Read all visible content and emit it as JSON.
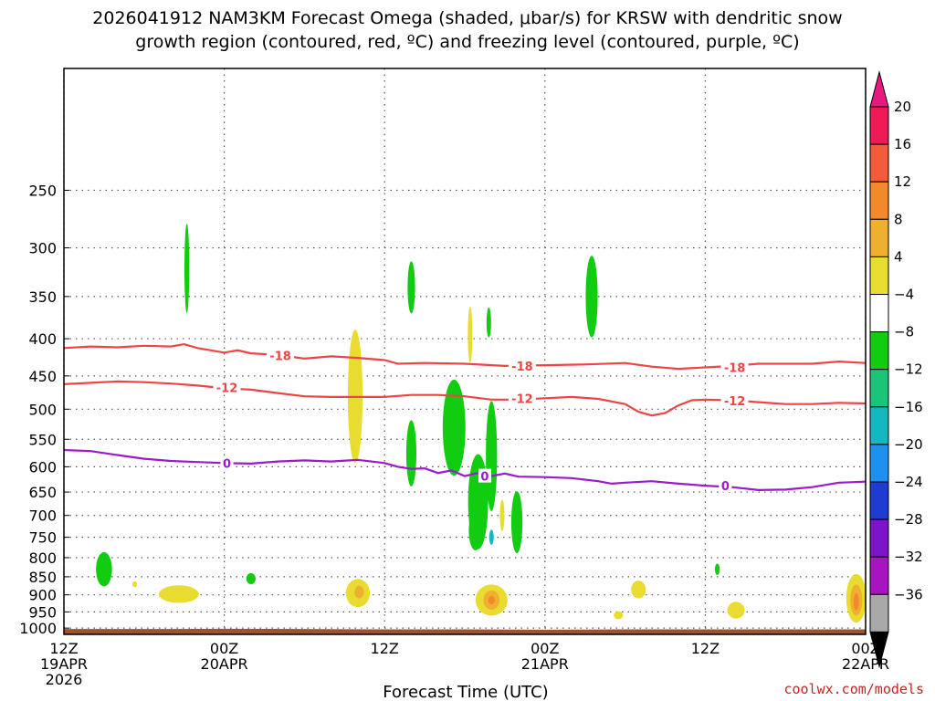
{
  "title_line1": "2026041912 NAM3KM Forecast Omega (shaded, μbar/s) for KRSW with dendritic snow",
  "title_line2": "growth region (contoured, red, ºC) and freezing level (contoured, purple, ºC)",
  "credit": "coolwx.com/models",
  "chart_data": {
    "type": "heatmap",
    "xlabel": "Forecast Time (UTC)",
    "ylabel": "",
    "x_range_hours": [
      0,
      60
    ],
    "y_range_hPa": [
      1020,
      170
    ],
    "y_scale": "log",
    "grid": "dotted",
    "y_ticks": [
      250,
      300,
      350,
      400,
      450,
      500,
      550,
      600,
      650,
      700,
      750,
      800,
      850,
      900,
      950,
      1000
    ],
    "x_ticks": [
      {
        "hour": 0,
        "lines": [
          "12Z",
          "19APR",
          "2026"
        ]
      },
      {
        "hour": 12,
        "lines": [
          "00Z",
          "20APR"
        ]
      },
      {
        "hour": 24,
        "lines": [
          "12Z"
        ]
      },
      {
        "hour": 36,
        "lines": [
          "00Z",
          "21APR"
        ]
      },
      {
        "hour": 48,
        "lines": [
          "12Z"
        ]
      },
      {
        "hour": 60,
        "lines": [
          "00Z",
          "22APR"
        ]
      }
    ],
    "colorbar": {
      "levels": [
        20,
        16,
        12,
        8,
        4,
        -4,
        -8,
        -12,
        -16,
        -20,
        -24,
        -28,
        -32,
        -36
      ],
      "colors": [
        "#ee1a55",
        "#f35b3b",
        "#f2892a",
        "#eeb02e",
        "#e9dc30",
        "#ffffff",
        "#12cc12",
        "#1cc47a",
        "#14b8c0",
        "#1e90ee",
        "#1e3cd0",
        "#7d14c8",
        "#a814c0",
        "#a9a9a9"
      ],
      "top_cap_color": "#e8197e",
      "bottom_cap_color": "#000000"
    },
    "series": [
      {
        "name": "-18",
        "color": "#ee4444",
        "points": [
          [
            0,
            412
          ],
          [
            2,
            410
          ],
          [
            4,
            411
          ],
          [
            6,
            409
          ],
          [
            8,
            410
          ],
          [
            9,
            407
          ],
          [
            10,
            412
          ],
          [
            12,
            418
          ],
          [
            13,
            415
          ],
          [
            14,
            419
          ],
          [
            16,
            421
          ],
          [
            18,
            426
          ],
          [
            20,
            423
          ],
          [
            22,
            425
          ],
          [
            24,
            428
          ],
          [
            25,
            433
          ],
          [
            27,
            432
          ],
          [
            30,
            433
          ],
          [
            33,
            436
          ],
          [
            36,
            435
          ],
          [
            39,
            434
          ],
          [
            42,
            432
          ],
          [
            44,
            437
          ],
          [
            46,
            440
          ],
          [
            48,
            438
          ],
          [
            50,
            436
          ],
          [
            52,
            433
          ],
          [
            54,
            433
          ],
          [
            56,
            433
          ],
          [
            58,
            430
          ],
          [
            60,
            432
          ]
        ],
        "labels": [
          [
            16.2,
            422
          ],
          [
            34.3,
            436
          ],
          [
            50.2,
            438
          ]
        ]
      },
      {
        "name": "-12",
        "color": "#ee4444",
        "points": [
          [
            0,
            462
          ],
          [
            2,
            460
          ],
          [
            4,
            458
          ],
          [
            6,
            459
          ],
          [
            8,
            461
          ],
          [
            10,
            464
          ],
          [
            12,
            468
          ],
          [
            14,
            470
          ],
          [
            16,
            475
          ],
          [
            18,
            480
          ],
          [
            20,
            481
          ],
          [
            22,
            481
          ],
          [
            24,
            481
          ],
          [
            26,
            478
          ],
          [
            28,
            478
          ],
          [
            30,
            480
          ],
          [
            32,
            485
          ],
          [
            34,
            485
          ],
          [
            36,
            483
          ],
          [
            38,
            481
          ],
          [
            40,
            484
          ],
          [
            42,
            492
          ],
          [
            43,
            504
          ],
          [
            44,
            510
          ],
          [
            45,
            506
          ],
          [
            46,
            494
          ],
          [
            47,
            486
          ],
          [
            48,
            485
          ],
          [
            50,
            486
          ],
          [
            52,
            489
          ],
          [
            54,
            492
          ],
          [
            56,
            492
          ],
          [
            58,
            490
          ],
          [
            60,
            491
          ]
        ],
        "labels": [
          [
            12.2,
            467
          ],
          [
            34.3,
            483
          ],
          [
            50.2,
            487
          ]
        ]
      },
      {
        "name": "0",
        "color": "#9a1acc",
        "points": [
          [
            0,
            569
          ],
          [
            2,
            571
          ],
          [
            4,
            578
          ],
          [
            6,
            585
          ],
          [
            8,
            589
          ],
          [
            10,
            591
          ],
          [
            12,
            593
          ],
          [
            14,
            594
          ],
          [
            16,
            590
          ],
          [
            18,
            588
          ],
          [
            20,
            590
          ],
          [
            22,
            587
          ],
          [
            24,
            593
          ],
          [
            25,
            600
          ],
          [
            26,
            604
          ],
          [
            27,
            603
          ],
          [
            28,
            612
          ],
          [
            29,
            607
          ],
          [
            30,
            618
          ],
          [
            31,
            612
          ],
          [
            32,
            618
          ],
          [
            33,
            613
          ],
          [
            34,
            619
          ],
          [
            36,
            620
          ],
          [
            38,
            622
          ],
          [
            40,
            628
          ],
          [
            41,
            633
          ],
          [
            42,
            631
          ],
          [
            44,
            628
          ],
          [
            46,
            633
          ],
          [
            48,
            637
          ],
          [
            50,
            640
          ],
          [
            52,
            646
          ],
          [
            54,
            645
          ],
          [
            56,
            640
          ],
          [
            58,
            631
          ],
          [
            60,
            629
          ]
        ],
        "labels": [
          [
            12.2,
            593
          ],
          [
            31.5,
            618
          ],
          [
            49.5,
            637
          ]
        ]
      }
    ],
    "blobs": [
      {
        "t": 9.2,
        "p": 320,
        "dt": 0.18,
        "dp": 45,
        "color": "#12cc12"
      },
      {
        "t": 26.0,
        "p": 340,
        "dt": 0.28,
        "dp": 28,
        "color": "#12cc12"
      },
      {
        "t": 31.8,
        "p": 380,
        "dt": 0.12,
        "dp": 18,
        "color": "#12cc12"
      },
      {
        "t": 30.4,
        "p": 395,
        "dt": 0.08,
        "dp": 35,
        "color": "#e9dc30"
      },
      {
        "t": 39.5,
        "p": 350,
        "dt": 0.45,
        "dp": 45,
        "color": "#12cc12"
      },
      {
        "t": 21.8,
        "p": 480,
        "dt": 0.55,
        "dp": 100,
        "color": "#e9dc30"
      },
      {
        "t": 26.0,
        "p": 575,
        "dt": 0.38,
        "dp": 60,
        "color": "#12cc12"
      },
      {
        "t": 29.2,
        "p": 530,
        "dt": 0.85,
        "dp": 80,
        "color": "#12cc12"
      },
      {
        "t": 31.0,
        "p": 670,
        "dt": 0.75,
        "dp": 100,
        "color": "#12cc12"
      },
      {
        "t": 32.0,
        "p": 580,
        "dt": 0.42,
        "dp": 100,
        "color": "#12cc12"
      },
      {
        "t": 30.8,
        "p": 735,
        "dt": 0.5,
        "dp": 45,
        "color": "#12cc12"
      },
      {
        "t": 33.9,
        "p": 715,
        "dt": 0.42,
        "dp": 70,
        "color": "#12cc12"
      },
      {
        "t": 32.8,
        "p": 700,
        "dt": 0.15,
        "dp": 35,
        "color": "#e9dc30"
      },
      {
        "t": 32.0,
        "p": 750,
        "dt": 0.1,
        "dp": 18,
        "color": "#14b8c0"
      },
      {
        "t": 3.0,
        "p": 830,
        "dt": 0.6,
        "dp": 45,
        "color": "#12cc12"
      },
      {
        "t": 5.3,
        "p": 870,
        "dt": 0.12,
        "dp": 8,
        "color": "#e9dc30"
      },
      {
        "t": 8.6,
        "p": 898,
        "dt": 1.5,
        "dp": 25,
        "color": "#e9dc30"
      },
      {
        "t": 14.0,
        "p": 855,
        "dt": 0.35,
        "dp": 15,
        "color": "#12cc12"
      },
      {
        "t": 22.0,
        "p": 895,
        "dt": 0.9,
        "dp": 40,
        "color": "#e9dc30"
      },
      {
        "t": 22.1,
        "p": 892,
        "dt": 0.35,
        "dp": 18,
        "color": "#eeb02e"
      },
      {
        "t": 32.0,
        "p": 915,
        "dt": 1.2,
        "dp": 45,
        "color": "#e9dc30"
      },
      {
        "t": 32.0,
        "p": 915,
        "dt": 0.6,
        "dp": 28,
        "color": "#eeb02e"
      },
      {
        "t": 32.0,
        "p": 915,
        "dt": 0.25,
        "dp": 12,
        "color": "#f2892a"
      },
      {
        "t": 41.5,
        "p": 960,
        "dt": 0.35,
        "dp": 12,
        "color": "#e9dc30"
      },
      {
        "t": 43.0,
        "p": 885,
        "dt": 0.55,
        "dp": 25,
        "color": "#e9dc30"
      },
      {
        "t": 48.9,
        "p": 830,
        "dt": 0.18,
        "dp": 15,
        "color": "#12cc12"
      },
      {
        "t": 50.3,
        "p": 945,
        "dt": 0.65,
        "dp": 25,
        "color": "#e9dc30"
      },
      {
        "t": 59.3,
        "p": 910,
        "dt": 0.75,
        "dp": 70,
        "color": "#e9dc30"
      },
      {
        "t": 59.3,
        "p": 915,
        "dt": 0.45,
        "dp": 45,
        "color": "#eeb02e"
      },
      {
        "t": 59.3,
        "p": 920,
        "dt": 0.2,
        "dp": 25,
        "color": "#f2892a"
      }
    ],
    "terrain": {
      "color": "#a0522d",
      "points": [
        [
          0,
          1003
        ],
        [
          8,
          1003
        ],
        [
          12,
          1002
        ],
        [
          18,
          1003
        ],
        [
          24,
          1004
        ],
        [
          30,
          1004
        ],
        [
          36,
          1005
        ],
        [
          42,
          1004
        ],
        [
          48,
          1004
        ],
        [
          54,
          1004
        ],
        [
          60,
          1004
        ]
      ]
    }
  }
}
